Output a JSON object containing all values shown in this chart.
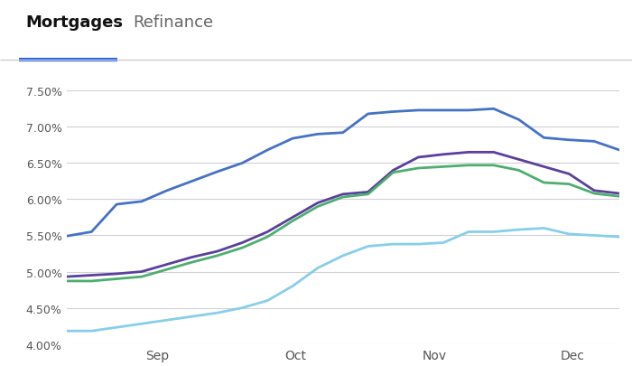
{
  "tab_mortgages": "Mortgages",
  "tab_refinance": "Refinance",
  "tab_underline_color": "#2563eb",
  "tab_separator_color": "#cccccc",
  "background_color": "#ffffff",
  "x_labels": [
    "Sep",
    "Oct",
    "Nov",
    "Dec"
  ],
  "ylim": [
    4.0,
    7.7
  ],
  "yticks": [
    4.0,
    4.5,
    5.0,
    5.5,
    6.0,
    6.5,
    7.0,
    7.5
  ],
  "grid_color": "#d0d0d8",
  "series": {
    "blue_dark": {
      "color": "#4472c4",
      "data": [
        5.49,
        5.55,
        5.93,
        5.97,
        6.12,
        6.25,
        6.38,
        6.5,
        6.68,
        6.84,
        6.9,
        6.92,
        7.18,
        7.21,
        7.23,
        7.23,
        7.23,
        7.25,
        7.1,
        6.85,
        6.82,
        6.8,
        6.68
      ]
    },
    "purple": {
      "color": "#5b3f9e",
      "data": [
        4.93,
        4.95,
        4.97,
        5.0,
        5.1,
        5.2,
        5.28,
        5.4,
        5.55,
        5.75,
        5.95,
        6.07,
        6.1,
        6.4,
        6.58,
        6.62,
        6.65,
        6.65,
        6.55,
        6.45,
        6.35,
        6.12,
        6.08
      ]
    },
    "green": {
      "color": "#4caf6e",
      "data": [
        4.87,
        4.87,
        4.9,
        4.93,
        5.03,
        5.13,
        5.22,
        5.33,
        5.48,
        5.7,
        5.9,
        6.03,
        6.07,
        6.37,
        6.43,
        6.45,
        6.47,
        6.47,
        6.4,
        6.23,
        6.21,
        6.08,
        6.04
      ]
    },
    "blue_light": {
      "color": "#87ceeb",
      "data": [
        4.18,
        4.18,
        4.23,
        4.28,
        4.33,
        4.38,
        4.43,
        4.5,
        4.6,
        4.8,
        5.05,
        5.22,
        5.35,
        5.38,
        5.38,
        5.4,
        5.55,
        5.55,
        5.58,
        5.6,
        5.52,
        5.5,
        5.48
      ]
    }
  }
}
